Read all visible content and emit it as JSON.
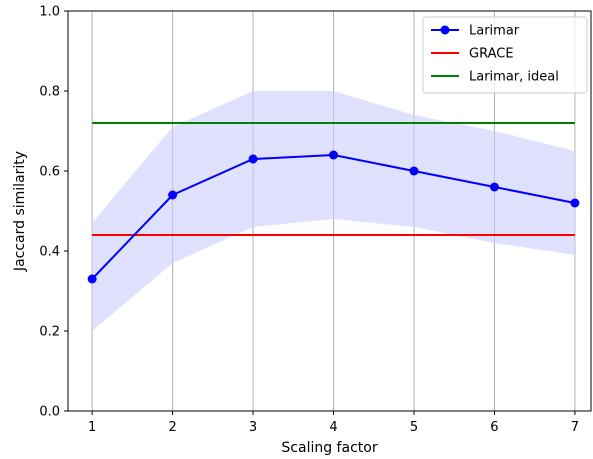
{
  "chart_data": {
    "type": "line",
    "title": "",
    "xlabel": "Scaling factor",
    "ylabel": "Jaccard similarity",
    "xlim": [
      0.7,
      7.2
    ],
    "ylim": [
      0.0,
      1.0
    ],
    "xticks": [
      "1",
      "2",
      "3",
      "4",
      "5",
      "6",
      "7"
    ],
    "yticks": [
      "0.0",
      "0.2",
      "0.4",
      "0.6",
      "0.8",
      "1.0"
    ],
    "x_grid": true,
    "legend_position": "top-right",
    "series": [
      {
        "name": "Larimar",
        "kind": "line-markers",
        "color": "#0000ff",
        "x": [
          1,
          2,
          3,
          4,
          5,
          6,
          7
        ],
        "values": [
          0.33,
          0.54,
          0.63,
          0.64,
          0.6,
          0.56,
          0.52
        ],
        "band_lower": [
          0.2,
          0.37,
          0.46,
          0.48,
          0.46,
          0.42,
          0.39
        ],
        "band_upper": [
          0.47,
          0.71,
          0.8,
          0.8,
          0.74,
          0.7,
          0.65
        ],
        "band_color": "#ccccff"
      },
      {
        "name": "GRACE",
        "kind": "hline",
        "color": "#ff0000",
        "value": 0.44
      },
      {
        "name": "Larimar, ideal",
        "kind": "hline",
        "color": "#008000",
        "value": 0.72
      }
    ]
  }
}
